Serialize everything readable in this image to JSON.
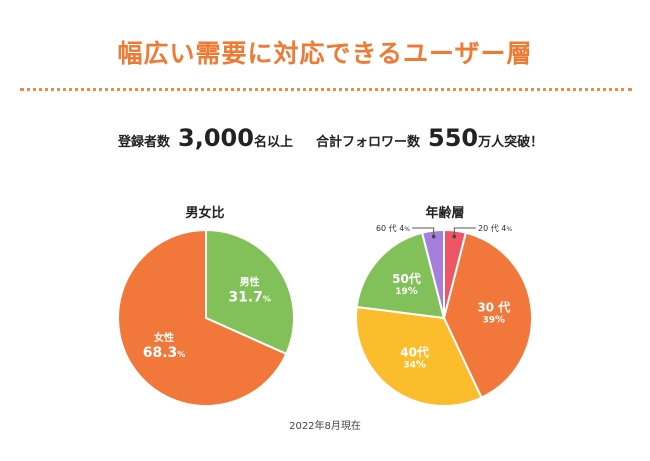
{
  "header": {
    "title": "幅広い需要に対応できるユーザー層"
  },
  "stats": {
    "users_label": "登録者数",
    "users_value": "3,000",
    "users_unit": "名以上",
    "followers_label": "合計フォロワー数",
    "followers_value": "550",
    "followers_unit": "万人突破！"
  },
  "footer": {
    "note": "2022年8月現在"
  },
  "colors": {
    "accent": "#ef7a33",
    "male": "#82c15a",
    "female": "#f2773b",
    "age_20": "#ee5565",
    "age_30": "#f2773b",
    "age_40": "#fbbd2b",
    "age_50": "#82c15a",
    "age_60": "#a57fdc"
  },
  "chart_data": [
    {
      "type": "pie",
      "title": "男女比",
      "categories": [
        "男性",
        "女性"
      ],
      "values": [
        31.7,
        68.3
      ],
      "value_labels": [
        "31.7",
        "68.3"
      ],
      "unit": "%"
    },
    {
      "type": "pie",
      "title": "年齢層",
      "categories": [
        "20 代",
        "30 代",
        "40代",
        "50代",
        "60 代"
      ],
      "values": [
        4,
        39,
        34,
        19,
        4
      ],
      "value_labels": [
        "4",
        "39",
        "34",
        "19",
        "4"
      ],
      "unit": "%"
    }
  ]
}
